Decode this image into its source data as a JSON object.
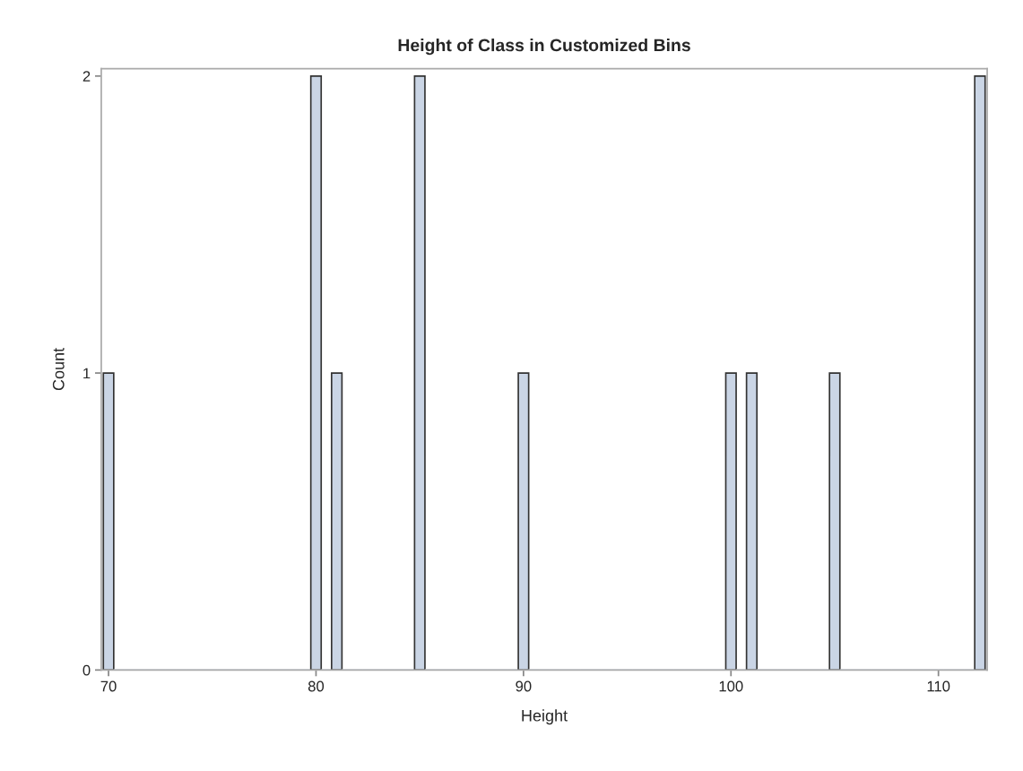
{
  "chart_data": {
    "type": "histogram",
    "title": "Height of Class in Customized Bins",
    "xlabel": "Height",
    "ylabel": "Count",
    "bins": [
      69.75,
      70.25,
      70.75,
      71.25,
      71.75,
      72.25,
      72.75,
      73.25,
      73.75,
      74.25,
      74.75,
      75.25,
      75.75,
      76.25,
      76.75,
      77.25,
      77.75,
      78.25,
      78.75,
      79.25,
      79.75,
      80.25,
      80.75,
      81.25,
      81.75,
      82.25,
      82.75,
      83.25,
      83.75,
      84.25,
      84.75,
      85.25,
      85.75,
      86.25,
      86.75,
      87.25,
      87.75,
      88.25,
      88.75,
      89.25,
      89.75,
      90.25,
      90.75,
      91.25,
      91.75,
      92.25,
      92.75,
      93.25,
      93.75,
      94.25,
      94.75,
      95.25,
      95.75,
      96.25,
      96.75,
      97.25,
      97.75,
      98.25,
      98.75,
      99.25,
      99.75,
      100.25,
      100.75,
      101.25,
      101.75,
      102.25,
      102.75,
      103.25,
      103.75,
      104.25,
      104.75,
      105.25,
      105.75,
      106.25,
      106.75,
      107.25,
      107.75,
      108.25,
      108.75,
      109.25,
      109.75,
      110.25,
      110.75,
      111.25,
      111.75,
      112.25
    ],
    "values": [
      1,
      0,
      0,
      0,
      0,
      0,
      0,
      0,
      0,
      0,
      0,
      0,
      0,
      0,
      0,
      0,
      0,
      0,
      0,
      0,
      2,
      0,
      1,
      0,
      0,
      0,
      0,
      0,
      0,
      0,
      2,
      0,
      0,
      0,
      0,
      0,
      0,
      0,
      0,
      0,
      1,
      0,
      0,
      0,
      0,
      0,
      0,
      0,
      0,
      0,
      0,
      0,
      0,
      0,
      0,
      0,
      0,
      0,
      0,
      0,
      1,
      0,
      1,
      0,
      0,
      0,
      0,
      0,
      0,
      0,
      1,
      0,
      0,
      0,
      0,
      0,
      0,
      0,
      0,
      0,
      0,
      0,
      0,
      0,
      2
    ],
    "color": "#cad5e5",
    "xlim": [
      69.65,
      112.35
    ],
    "xticks": [
      70,
      80,
      90,
      100,
      110
    ],
    "ylim": [
      0,
      2.025
    ],
    "yticks": [
      0,
      1,
      2
    ],
    "grid": false,
    "legend": false
  }
}
